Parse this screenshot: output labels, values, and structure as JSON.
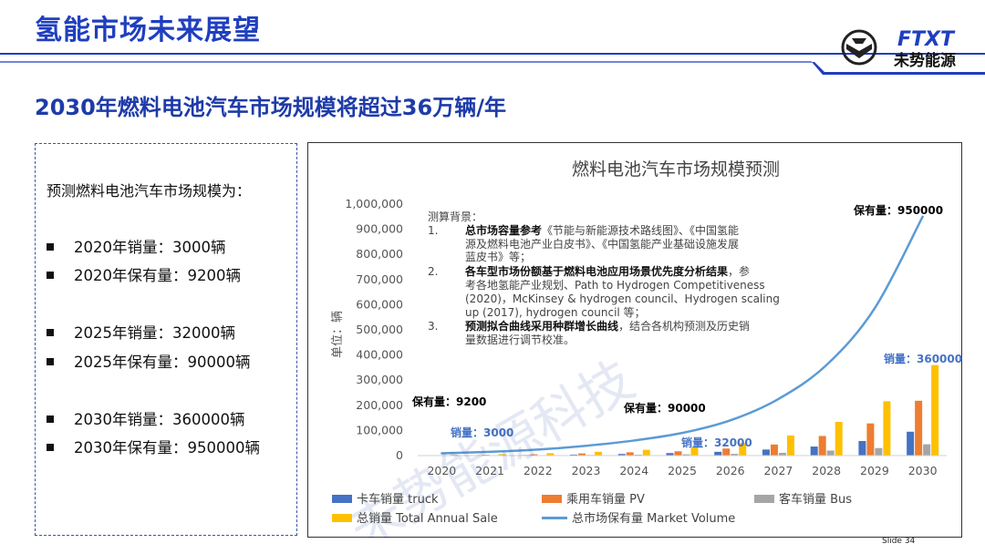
{
  "header": {
    "title": "氢能市场未来展望",
    "logo_text": "FTXT",
    "logo_subtext": "未势能源",
    "brand_color": "#1f3fbf"
  },
  "subtitle": "2030年燃料电池汽车市场规模将超过36万辆/年",
  "left_panel": {
    "intro": "预测燃料电池汽车市场规模为：",
    "items": [
      "2020年销量：3000辆",
      "2020年保有量：9200辆",
      "2025年销量：32000辆",
      "2025年保有量：90000辆",
      "2030年销量：360000辆",
      "2030年保有量：950000辆"
    ]
  },
  "note": {
    "heading": "测算背景：",
    "items": [
      {
        "num": "1.",
        "bold": "总市场容量参考",
        "lines": [
          "《节能与新能源技术路线图》、《中国氢能",
          "源及燃料电池产业白皮书》、《中国氢能产业基础设施发展",
          "蓝皮书》等；"
        ]
      },
      {
        "num": "2.",
        "bold": "各车型市场份额基于燃料电池应用场景优先度分析结果",
        "lines": [
          "，参",
          "考各地氢能产业规划、Path to Hydrogen Competitiveness",
          "(2020)，McKinsey & hydrogen council、Hydrogen scaling",
          "up (2017), hydrogen council 等；"
        ]
      },
      {
        "num": "3.",
        "bold": "预测拟合曲线采用种群增长曲线",
        "lines": [
          "，结合各机构预测及历史销",
          "量数据进行调节校准。"
        ]
      }
    ]
  },
  "watermark": "未势能源科技",
  "slide_number": "Slide 34",
  "chart_data": {
    "type": "bar",
    "title": "燃料电池汽车市场规模预测",
    "ylabel": "单位：辆",
    "xlabel": "",
    "ylim": [
      0,
      1000000
    ],
    "y_ticks": [
      "0",
      "100,000",
      "200,000",
      "300,000",
      "400,000",
      "500,000",
      "600,000",
      "700,000",
      "800,000",
      "900,000",
      "1,000,000"
    ],
    "categories": [
      "2020",
      "2021",
      "2022",
      "2023",
      "2024",
      "2025",
      "2026",
      "2027",
      "2028",
      "2029",
      "2030"
    ],
    "series": [
      {
        "name": "卡车销量 truck",
        "kind": "bar",
        "color": "#4472c4",
        "values": [
          700,
          1500,
          2500,
          4000,
          6500,
          10000,
          15000,
          24000,
          36000,
          58000,
          95000
        ]
      },
      {
        "name": "乘用车销量 PV",
        "kind": "bar",
        "color": "#ed7d31",
        "values": [
          1600,
          3300,
          5200,
          8500,
          13000,
          17000,
          28000,
          44000,
          78000,
          128000,
          218000
        ]
      },
      {
        "name": "客车销量 Bus",
        "kind": "bar",
        "color": "#a5a5a5",
        "values": [
          700,
          1200,
          1800,
          2500,
          3500,
          5000,
          7000,
          11000,
          20000,
          30000,
          45000
        ]
      },
      {
        "name": "总销量 Total Annual Sale",
        "kind": "bar",
        "color": "#ffc000",
        "values": [
          3000,
          6000,
          9500,
          15000,
          23000,
          32000,
          50000,
          80000,
          134000,
          216000,
          360000
        ]
      },
      {
        "name": "总市场保有量 Market Volume",
        "kind": "line",
        "color": "#5b9bd5",
        "values": [
          9200,
          15000,
          24000,
          39000,
          60000,
          90000,
          140000,
          225000,
          360000,
          585000,
          950000
        ]
      }
    ],
    "annotations": [
      {
        "text": "保有量：9200",
        "color": "#000000"
      },
      {
        "text": "销量：3000",
        "color": "#4472c4"
      },
      {
        "text": "保有量：90000",
        "color": "#000000"
      },
      {
        "text": "销量：32000",
        "color": "#4472c4"
      },
      {
        "text": "保有量：950000",
        "color": "#000000"
      },
      {
        "text": "销量：360000",
        "color": "#4472c4"
      }
    ],
    "legend_position": "bottom",
    "grid": false
  }
}
